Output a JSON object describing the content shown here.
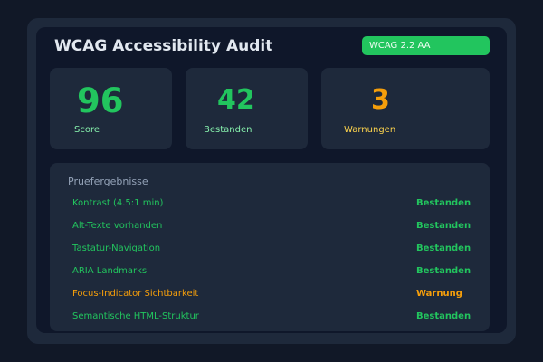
{
  "header": {
    "title": "WCAG Accessibility Audit",
    "badge": "WCAG 2.2 AA"
  },
  "stats": [
    {
      "value": "96",
      "label": "Score"
    },
    {
      "value": "42",
      "label": "Bestanden"
    },
    {
      "value": "3",
      "label": "Warnungen"
    }
  ],
  "results": {
    "heading": "Pruefergebnisse",
    "rows": [
      {
        "label": "Kontrast (4.5:1 min)",
        "status": "Bestanden"
      },
      {
        "label": "Alt-Texte vorhanden",
        "status": "Bestanden"
      },
      {
        "label": "Tastatur-Navigation",
        "status": "Bestanden"
      },
      {
        "label": "ARIA Landmarks",
        "status": "Bestanden"
      },
      {
        "label": "Focus-Indicator Sichtbarkeit",
        "status": "Warnung"
      },
      {
        "label": "Semantische HTML-Struktur",
        "status": "Bestanden"
      }
    ]
  },
  "colors": {
    "pass": "#22c55e",
    "warn": "#f59e0b",
    "badge": "#22c55e"
  }
}
